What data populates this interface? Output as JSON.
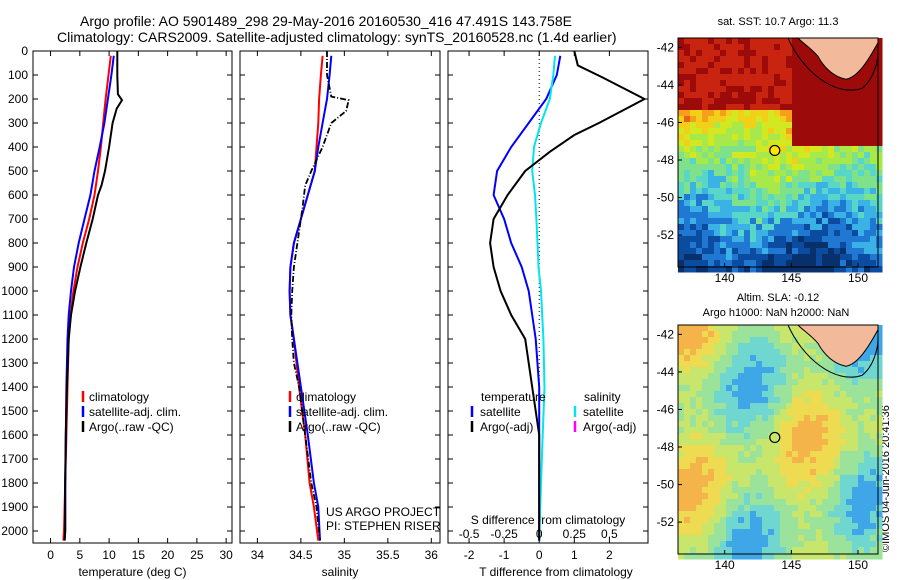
{
  "header": {
    "line1": "Argo profile: AO 5901489_298 29-May-2016 20160530_416 47.491S 143.758E",
    "line2": "Climatology: CARS2009. Satellite-adjusted climatology: synTS_20160528.nc (1.4d earlier)"
  },
  "colors": {
    "climatology": "#ff0000",
    "satellite": "#0000ff",
    "argo": "#000000",
    "sal_satellite": "#00e5ee",
    "sal_argo": "#ff00ff",
    "land": "#f2b99a"
  },
  "chart_data": [
    {
      "type": "line",
      "id": "temperature",
      "xlabel": "temperature (deg C)",
      "xlim": [
        -3,
        31
      ],
      "ylim": [
        0,
        2050
      ],
      "xticks": [
        "0",
        "5",
        "10",
        "15",
        "20",
        "25",
        "30"
      ],
      "yticks": [
        "0",
        "100",
        "200",
        "300",
        "400",
        "500",
        "600",
        "700",
        "800",
        "900",
        "1000",
        "1100",
        "1200",
        "1300",
        "1400",
        "1500",
        "1600",
        "1700",
        "1800",
        "1900",
        "2000"
      ],
      "legend": [
        "climatology",
        "satellite-adj. clim.",
        "Argo(..raw -QC)"
      ],
      "series": [
        {
          "name": "climatology",
          "color": "#ff0000",
          "style": "solid",
          "x": [
            10.3,
            9.9,
            9.4,
            9.0,
            8.6,
            8.1,
            7.5,
            6.6,
            5.5,
            4.6,
            3.9,
            3.4,
            3.1,
            2.9,
            2.7,
            2.6,
            2.5,
            2.4,
            2.3,
            2.2
          ],
          "y": [
            20,
            100,
            200,
            300,
            400,
            500,
            600,
            700,
            800,
            900,
            1000,
            1100,
            1200,
            1400,
            1600,
            1700,
            1800,
            1900,
            2000,
            2040
          ]
        },
        {
          "name": "satellite-adj. clim.",
          "color": "#0000ff",
          "style": "solid",
          "x": [
            10.8,
            10.4,
            9.8,
            9.2,
            8.4,
            7.5,
            6.8,
            5.8,
            4.8,
            4.0,
            3.5,
            3.1,
            2.9,
            2.7,
            2.6,
            2.5,
            2.5,
            2.4
          ],
          "y": [
            20,
            100,
            200,
            300,
            400,
            500,
            600,
            700,
            800,
            900,
            1000,
            1100,
            1200,
            1400,
            1600,
            1800,
            2000,
            2040
          ]
        },
        {
          "name": "Argo(..raw -QC)",
          "color": "#000000",
          "style": "solid",
          "x": [
            11.4,
            11.4,
            11.5,
            12.2,
            11.3,
            10.6,
            10.0,
            9.3,
            8.7,
            8.1,
            7.2,
            6.1,
            5.1,
            4.2,
            3.5,
            3.1,
            2.8,
            2.6,
            2.5,
            2.5,
            2.4
          ],
          "y": [
            0,
            100,
            180,
            205,
            240,
            300,
            400,
            500,
            560,
            600,
            700,
            800,
            900,
            1000,
            1100,
            1200,
            1400,
            1600,
            1800,
            2000,
            2040
          ]
        }
      ]
    },
    {
      "type": "line",
      "id": "salinity",
      "xlabel": "salinity",
      "xlim": [
        33.8,
        36.1
      ],
      "ylim": [
        0,
        2050
      ],
      "xticks": [
        "34",
        "34.5",
        "35",
        "35.5",
        "36"
      ],
      "legend": [
        "climatology",
        "satellite-adj. clim.",
        "Argo(..raw -QC)"
      ],
      "series": [
        {
          "name": "climatology",
          "color": "#ff0000",
          "style": "solid",
          "x": [
            34.75,
            34.73,
            34.71,
            34.7,
            34.68,
            34.66,
            34.58,
            34.5,
            34.42,
            34.38,
            34.37,
            34.38,
            34.42,
            34.48,
            34.55,
            34.6,
            34.65,
            34.7
          ],
          "y": [
            20,
            100,
            200,
            300,
            400,
            500,
            600,
            700,
            800,
            900,
            1000,
            1100,
            1200,
            1400,
            1600,
            1800,
            1900,
            2040
          ]
        },
        {
          "name": "satellite-adj. clim.",
          "color": "#0000ff",
          "style": "solid",
          "x": [
            34.85,
            34.83,
            34.8,
            34.75,
            34.7,
            34.66,
            34.58,
            34.5,
            34.42,
            34.38,
            34.37,
            34.38,
            34.42,
            34.5,
            34.58,
            34.65,
            34.7,
            34.72
          ],
          "y": [
            20,
            100,
            200,
            300,
            400,
            500,
            600,
            700,
            800,
            900,
            1000,
            1100,
            1200,
            1400,
            1600,
            1800,
            1900,
            2040
          ]
        },
        {
          "name": "Argo(..raw -QC)",
          "color": "#000000",
          "style": "dashdot",
          "x": [
            34.8,
            34.8,
            34.85,
            35.05,
            35.02,
            34.85,
            34.75,
            34.62,
            34.55,
            34.52,
            34.5,
            34.46,
            34.42,
            34.4,
            34.39,
            34.4,
            34.42,
            34.48,
            34.55,
            34.62,
            34.68,
            34.72
          ],
          "y": [
            0,
            100,
            190,
            205,
            250,
            300,
            400,
            500,
            560,
            650,
            700,
            800,
            900,
            1000,
            1100,
            1200,
            1300,
            1400,
            1600,
            1800,
            1900,
            2040
          ]
        }
      ]
    },
    {
      "type": "line",
      "id": "difference",
      "xlabel": "T difference from climatology",
      "xlabel_top": "S difference from climatology",
      "xlim": [
        -2.6,
        3.1
      ],
      "ylim": [
        0,
        2050
      ],
      "xticks": [
        "-2",
        "-1",
        "0",
        "1",
        "2"
      ],
      "xticks_top": [
        "-0.5",
        "-0.25",
        "0",
        "0.25",
        "0.5"
      ],
      "legend_temperature_title": "temperature",
      "legend_salinity_title": "salinity",
      "legend_temperature": [
        "satellite",
        "Argo(-adj)"
      ],
      "legend_salinity": [
        "satellite",
        "Argo(-adj)"
      ],
      "series": [
        {
          "name": "satellite",
          "color": "#0000ff",
          "style": "solid",
          "x": [
            0.6,
            0.5,
            0.2,
            -0.3,
            -0.8,
            -1.2,
            -1.3,
            -1.0,
            -0.8,
            -0.5,
            -0.3,
            -0.1,
            0.0,
            0.0,
            0.0,
            0.0
          ],
          "y": [
            20,
            100,
            200,
            300,
            400,
            500,
            600,
            700,
            800,
            900,
            1000,
            1200,
            1400,
            1600,
            1800,
            2040
          ]
        },
        {
          "name": "satellite",
          "color": "#00e5ee",
          "style": "solid",
          "x": [
            0.45,
            0.4,
            0.3,
            0.05,
            -0.15,
            -0.2,
            -0.12,
            -0.08,
            -0.05,
            -0.02,
            0.05,
            0.12,
            0.15,
            0.1,
            0.05,
            0.0
          ],
          "y": [
            20,
            100,
            200,
            300,
            400,
            500,
            600,
            700,
            800,
            900,
            1000,
            1200,
            1400,
            1600,
            1800,
            2040
          ]
        },
        {
          "name": "Argo(-adj)",
          "color": "#000000",
          "style": "solid",
          "x": [
            1.0,
            1.1,
            1.8,
            3.0,
            1.7,
            1.0,
            0.3,
            -0.4,
            -0.9,
            -1.3,
            -1.4,
            -1.3,
            -1.1,
            -0.8,
            -0.4,
            -0.2,
            0.0,
            0.0,
            0.0
          ],
          "y": [
            0,
            60,
            110,
            200,
            300,
            350,
            420,
            500,
            600,
            700,
            800,
            900,
            1000,
            1100,
            1200,
            1400,
            1600,
            1800,
            2040
          ]
        }
      ]
    }
  ],
  "annotations": {
    "project": "US ARGO PROJECT",
    "pi": "PI: STEPHEN RISER"
  },
  "maps": {
    "sst": {
      "title": "sat. SST: 10.7 Argo: 11.3",
      "yticks": [
        "-42",
        "-44",
        "-46",
        "-48",
        "-50",
        "-52"
      ],
      "xticks": [
        "140",
        "145",
        "150"
      ]
    },
    "sla": {
      "title1": "Altim. SLA: -0.12",
      "title2": "Argo h1000: NaN h2000: NaN",
      "yticks": [
        "-42",
        "-44",
        "-46",
        "-48",
        "-50",
        "-52"
      ],
      "xticks": [
        "140",
        "145",
        "150"
      ]
    },
    "credit": "©IMOS 04-Jun-2016 20:41:36"
  }
}
